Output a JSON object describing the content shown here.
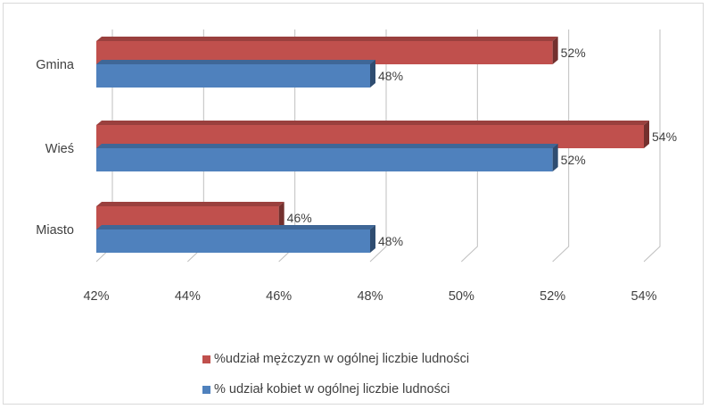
{
  "chart_data": {
    "type": "bar",
    "orientation": "horizontal",
    "style": "3d-clustered",
    "categories": [
      "Gmina",
      "Wieś",
      "Miasto"
    ],
    "series": [
      {
        "name": "%udział mężczyzn w ogólnej liczbie ludności",
        "color": "#c0504d",
        "values": [
          52,
          54,
          46
        ],
        "labels": [
          "52%",
          "54%",
          "46%"
        ]
      },
      {
        "name": "% udział kobiet w ogólnej liczbie ludności",
        "color": "#4f81bd",
        "values": [
          48,
          52,
          48
        ],
        "labels": [
          "48%",
          "52%",
          "48%"
        ]
      }
    ],
    "xlim": [
      42,
      54
    ],
    "xticks": [
      42,
      44,
      46,
      48,
      50,
      52,
      54
    ],
    "xtick_labels": [
      "42%",
      "44%",
      "46%",
      "48%",
      "50%",
      "52%",
      "54%"
    ],
    "grid": true,
    "legend_position": "bottom"
  }
}
